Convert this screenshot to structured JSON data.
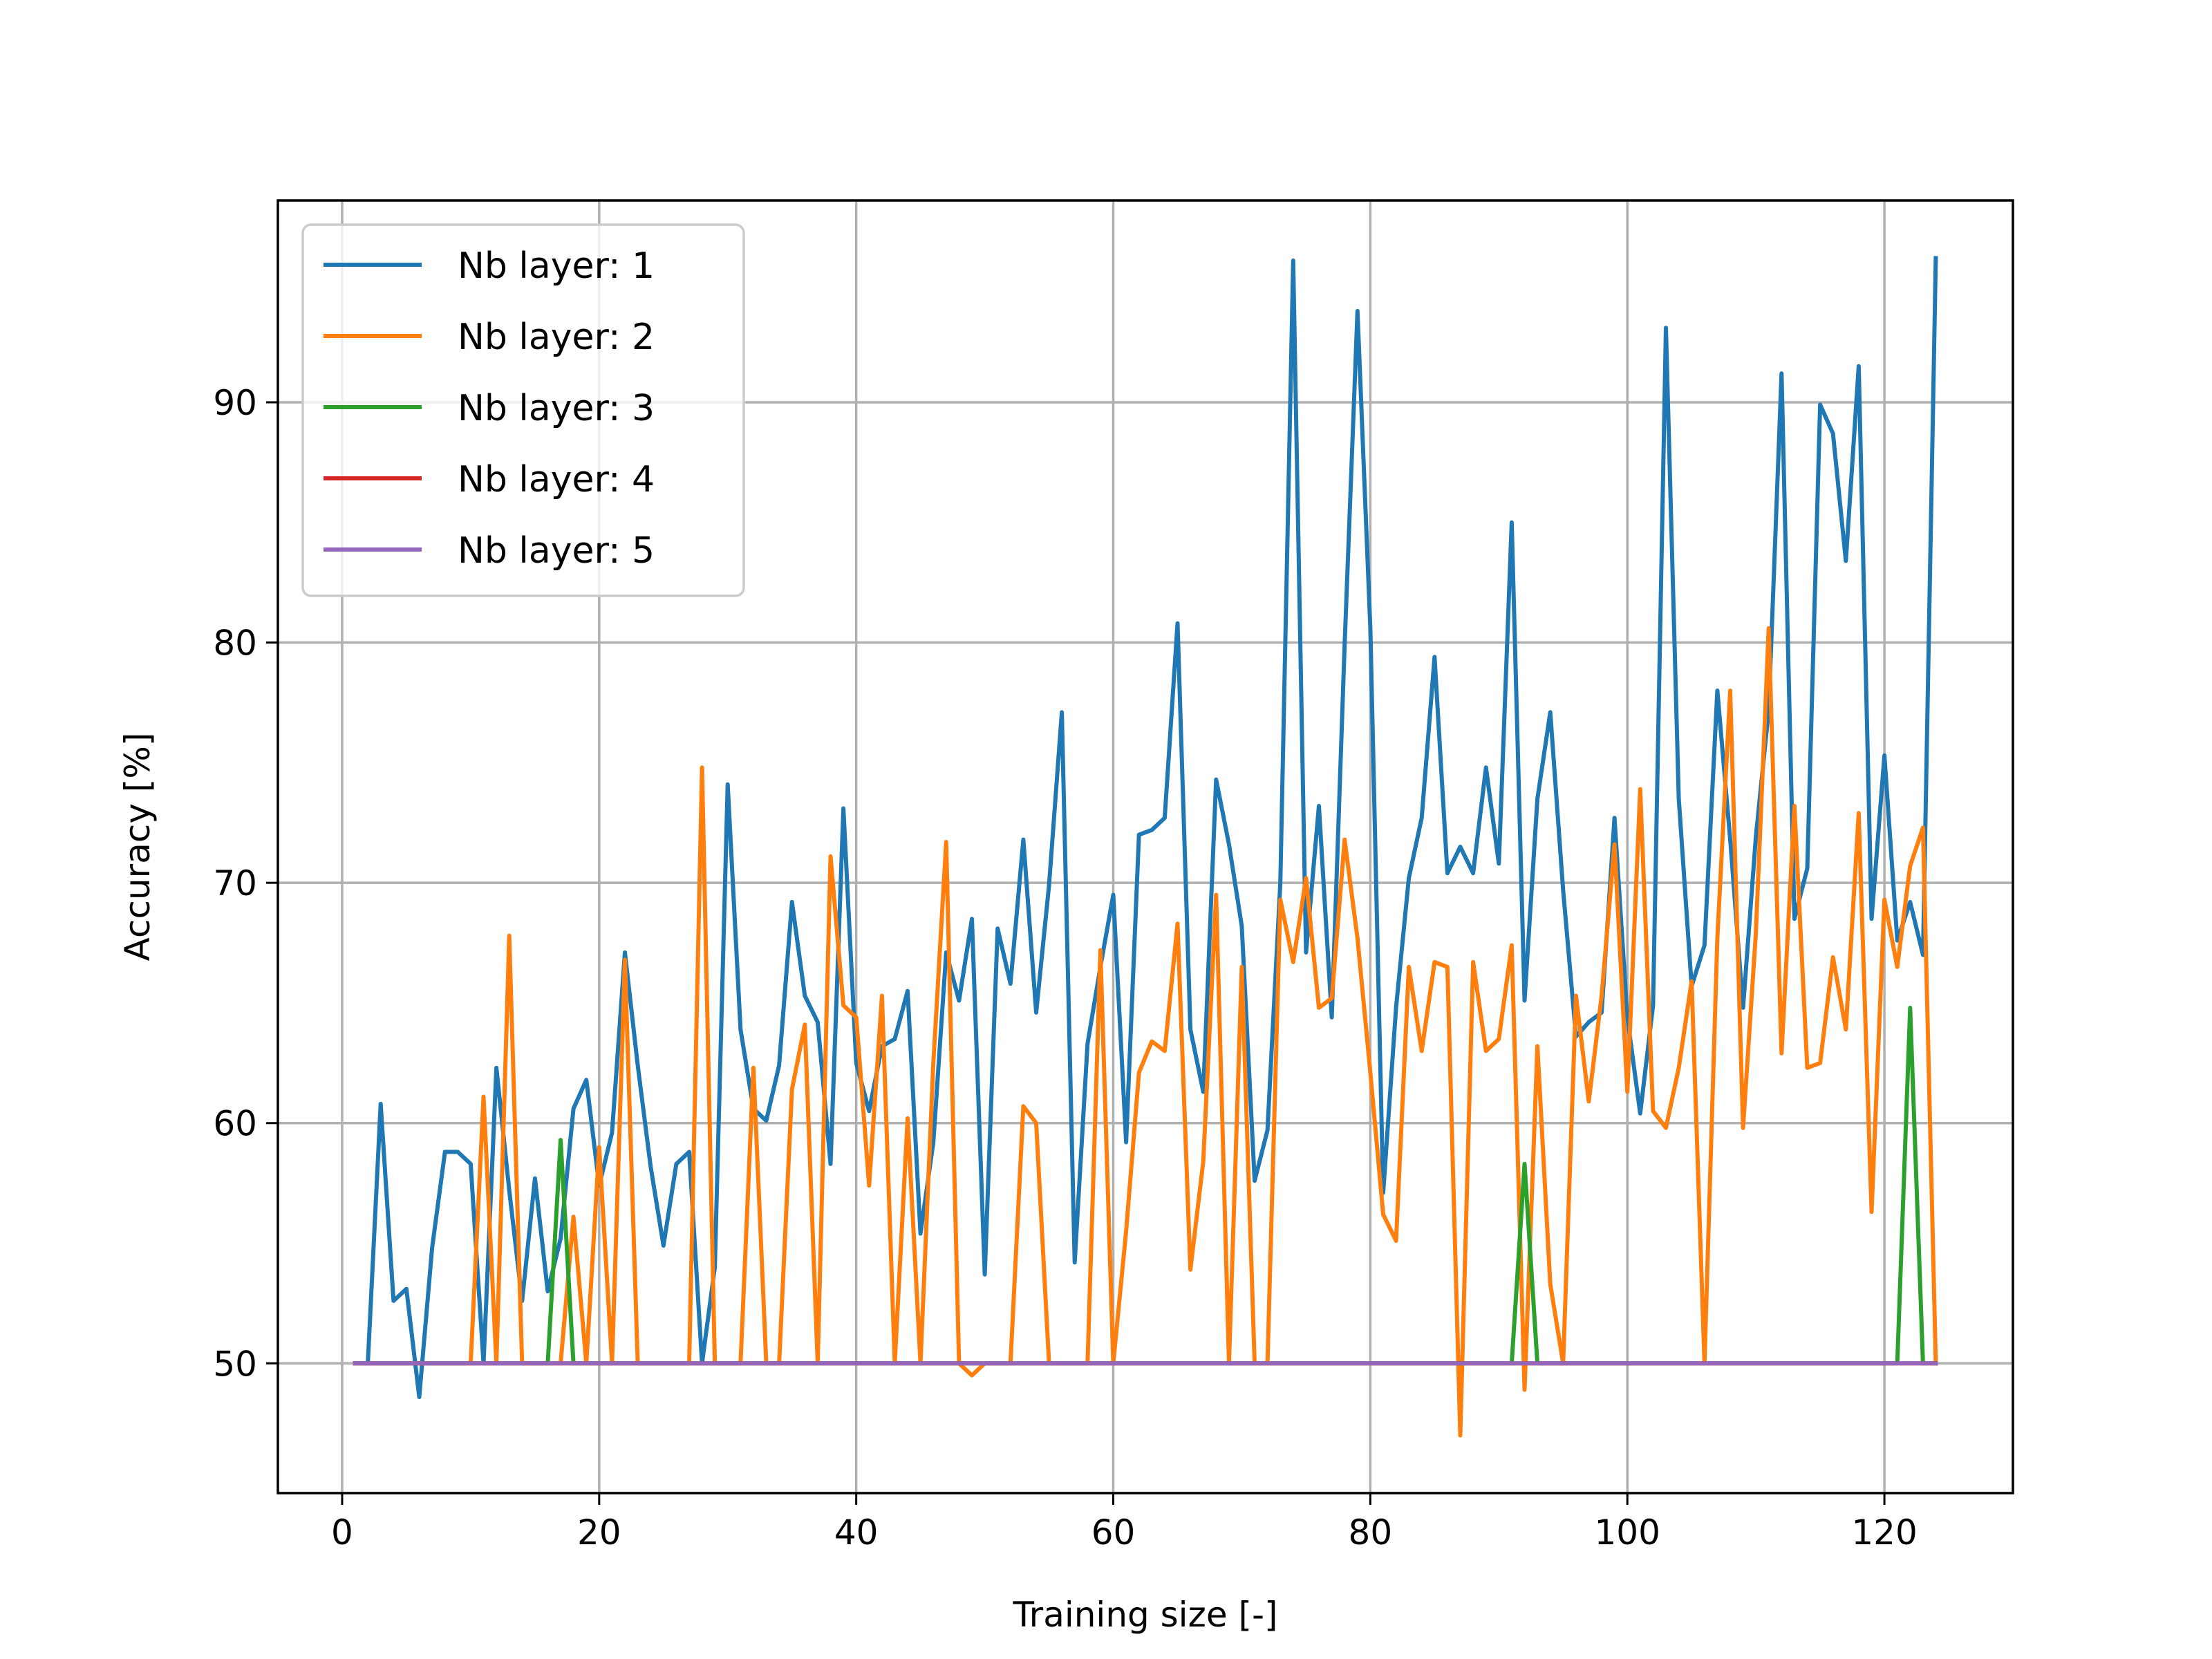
{
  "chart_data": {
    "type": "line",
    "title": "",
    "xlabel": "Training size [-]",
    "ylabel": "Accuracy [%]",
    "xlim": [
      -5,
      130
    ],
    "ylim": [
      44.6,
      98.4
    ],
    "xticks": [
      0,
      20,
      40,
      60,
      80,
      100,
      120
    ],
    "xtick_labels": [
      "0",
      "20",
      "40",
      "60",
      "80",
      "100",
      "120"
    ],
    "yticks": [
      50,
      60,
      70,
      80,
      90
    ],
    "ytick_labels": [
      "50",
      "60",
      "70",
      "80",
      "90"
    ],
    "grid": true,
    "legend_position": "top-left",
    "x": [
      1,
      2,
      3,
      4,
      5,
      6,
      7,
      8,
      9,
      10,
      11,
      12,
      13,
      14,
      15,
      16,
      17,
      18,
      19,
      20,
      21,
      22,
      23,
      24,
      25,
      26,
      27,
      28,
      29,
      30,
      31,
      32,
      33,
      34,
      35,
      36,
      37,
      38,
      39,
      40,
      41,
      42,
      43,
      44,
      45,
      46,
      47,
      48,
      49,
      50,
      51,
      52,
      53,
      54,
      55,
      56,
      57,
      58,
      59,
      60,
      61,
      62,
      63,
      64,
      65,
      66,
      67,
      68,
      69,
      70,
      71,
      72,
      73,
      74,
      75,
      76,
      77,
      78,
      79,
      80,
      81,
      82,
      83,
      84,
      85,
      86,
      87,
      88,
      89,
      90,
      91,
      92,
      93,
      94,
      95,
      96,
      97,
      98,
      99,
      100,
      101,
      102,
      103,
      104,
      105,
      106,
      107,
      108,
      109,
      110,
      111,
      112,
      113,
      114,
      115,
      116,
      117,
      118,
      119,
      120,
      121,
      122,
      123,
      124
    ],
    "series": [
      {
        "name": "Nb layer: 1",
        "color": "#1f77b4",
        "values": [
          50,
          50,
          60.8,
          52.6,
          53.1,
          48.6,
          54.8,
          58.8,
          58.8,
          58.3,
          50,
          62.3,
          57.2,
          52.6,
          57.7,
          53.0,
          55.2,
          60.6,
          61.8,
          57.4,
          59.6,
          67.1,
          62.4,
          58.2,
          54.9,
          58.3,
          58.8,
          50,
          54.0,
          74.1,
          63.9,
          60.6,
          60.1,
          62.4,
          69.2,
          65.3,
          64.2,
          58.3,
          73.1,
          62.5,
          60.5,
          63.2,
          63.5,
          65.5,
          55.4,
          59.2,
          67.1,
          65.1,
          68.5,
          53.7,
          68.1,
          65.8,
          71.8,
          64.6,
          69.9,
          77.1,
          54.2,
          63.3,
          66.5,
          69.5,
          59.2,
          72.0,
          72.2,
          72.7,
          80.8,
          63.9,
          61.3,
          74.3,
          71.6,
          68.2,
          57.6,
          59.7,
          70.0,
          95.9,
          67.1,
          73.2,
          64.4,
          79.9,
          93.8,
          80.6,
          57.1,
          64.8,
          70.2,
          72.7,
          79.4,
          70.4,
          71.5,
          70.4,
          74.8,
          70.8,
          85.0,
          65.1,
          73.5,
          77.1,
          69.7,
          63.6,
          64.2,
          64.6,
          72.7,
          64.4,
          60.4,
          64.9,
          93.1,
          73.5,
          65.7,
          67.4,
          78.0,
          71.8,
          64.8,
          71.9,
          77.2,
          91.2,
          68.5,
          70.6,
          89.9,
          88.7,
          83.4,
          91.5,
          68.5,
          75.3,
          67.6,
          69.2,
          67.0,
          96.0
        ]
      },
      {
        "name": "Nb layer: 2",
        "color": "#ff7f0e",
        "values": [
          50,
          50,
          50,
          50,
          50,
          50,
          50,
          50,
          50,
          50,
          61.1,
          50,
          67.8,
          50,
          50,
          50,
          50,
          56.1,
          50,
          59.0,
          50,
          66.8,
          50,
          50,
          50,
          50,
          50,
          74.8,
          50,
          50,
          50,
          62.3,
          50,
          50,
          61.4,
          64.1,
          50,
          71.1,
          64.9,
          64.4,
          57.4,
          65.3,
          50,
          60.2,
          50,
          62.5,
          71.7,
          50,
          49.5,
          50,
          50,
          50,
          60.7,
          60.0,
          50,
          50,
          50,
          50,
          67.2,
          50,
          55.5,
          62.1,
          63.4,
          63.0,
          68.3,
          53.9,
          58.4,
          69.5,
          50,
          66.5,
          50,
          50,
          69.3,
          66.7,
          70.2,
          64.8,
          65.2,
          71.8,
          67.7,
          62.1,
          56.2,
          55.1,
          66.5,
          63.0,
          66.7,
          66.5,
          47.0,
          66.7,
          63.0,
          63.5,
          67.4,
          48.9,
          63.2,
          53.3,
          50,
          65.3,
          60.9,
          65.3,
          71.6,
          61.3,
          73.9,
          60.5,
          59.8,
          62.3,
          65.9,
          50,
          67.7,
          78.0,
          59.8,
          67.9,
          80.6,
          62.9,
          73.2,
          62.3,
          62.5,
          66.9,
          63.9,
          72.9,
          56.3,
          69.3,
          66.5,
          70.7,
          72.3,
          50
        ]
      },
      {
        "name": "Nb layer: 3",
        "color": "#2ca02c",
        "values": [
          50,
          50,
          50,
          50,
          50,
          50,
          50,
          50,
          50,
          50,
          50,
          50,
          50,
          50,
          50,
          50,
          59.3,
          50,
          50,
          50,
          50,
          50,
          50,
          50,
          50,
          50,
          50,
          50,
          50,
          50,
          50,
          50,
          50,
          50,
          50,
          50,
          50,
          50,
          50,
          50,
          50,
          50,
          50,
          50,
          50,
          50,
          50,
          50,
          50,
          50,
          50,
          50,
          50,
          50,
          50,
          50,
          50,
          50,
          50,
          50,
          50,
          50,
          50,
          50,
          50,
          50,
          50,
          50,
          50,
          50,
          50,
          50,
          50,
          50,
          50,
          50,
          50,
          50,
          50,
          50,
          50,
          50,
          50,
          50,
          50,
          50,
          50,
          50,
          50,
          50,
          50,
          58.3,
          50,
          50,
          50,
          50,
          50,
          50,
          50,
          50,
          50,
          50,
          50,
          50,
          50,
          50,
          50,
          50,
          50,
          50,
          50,
          50,
          50,
          50,
          50,
          50,
          50,
          50,
          50,
          50,
          50,
          64.8,
          50,
          50
        ]
      },
      {
        "name": "Nb layer: 4",
        "color": "#d62728",
        "values": [
          50,
          50,
          50,
          50,
          50,
          50,
          50,
          50,
          50,
          50,
          50,
          50,
          50,
          50,
          50,
          50,
          50,
          50,
          50,
          50,
          50,
          50,
          50,
          50,
          50,
          50,
          50,
          50,
          50,
          50,
          50,
          50,
          50,
          50,
          50,
          50,
          50,
          50,
          50,
          50,
          50,
          50,
          50,
          50,
          50,
          50,
          50,
          50,
          50,
          50,
          50,
          50,
          50,
          50,
          50,
          50,
          50,
          50,
          50,
          50,
          50,
          50,
          50,
          50,
          50,
          50,
          50,
          50,
          50,
          50,
          50,
          50,
          50,
          50,
          50,
          50,
          50,
          50,
          50,
          50,
          50,
          50,
          50,
          50,
          50,
          50,
          50,
          50,
          50,
          50,
          50,
          50,
          50,
          50,
          50,
          50,
          50,
          50,
          50,
          50,
          50,
          50,
          50,
          50,
          50,
          50,
          50,
          50,
          50,
          50,
          50,
          50,
          50,
          50,
          50,
          50,
          50,
          50,
          50,
          50,
          50,
          50,
          50,
          50
        ]
      },
      {
        "name": "Nb layer: 5",
        "color": "#9467bd",
        "values": [
          50,
          50,
          50,
          50,
          50,
          50,
          50,
          50,
          50,
          50,
          50,
          50,
          50,
          50,
          50,
          50,
          50,
          50,
          50,
          50,
          50,
          50,
          50,
          50,
          50,
          50,
          50,
          50,
          50,
          50,
          50,
          50,
          50,
          50,
          50,
          50,
          50,
          50,
          50,
          50,
          50,
          50,
          50,
          50,
          50,
          50,
          50,
          50,
          50,
          50,
          50,
          50,
          50,
          50,
          50,
          50,
          50,
          50,
          50,
          50,
          50,
          50,
          50,
          50,
          50,
          50,
          50,
          50,
          50,
          50,
          50,
          50,
          50,
          50,
          50,
          50,
          50,
          50,
          50,
          50,
          50,
          50,
          50,
          50,
          50,
          50,
          50,
          50,
          50,
          50,
          50,
          50,
          50,
          50,
          50,
          50,
          50,
          50,
          50,
          50,
          50,
          50,
          50,
          50,
          50,
          50,
          50,
          50,
          50,
          50,
          50,
          50,
          50,
          50,
          50,
          50,
          50,
          50,
          50,
          50,
          50,
          50,
          50,
          50
        ]
      }
    ]
  }
}
